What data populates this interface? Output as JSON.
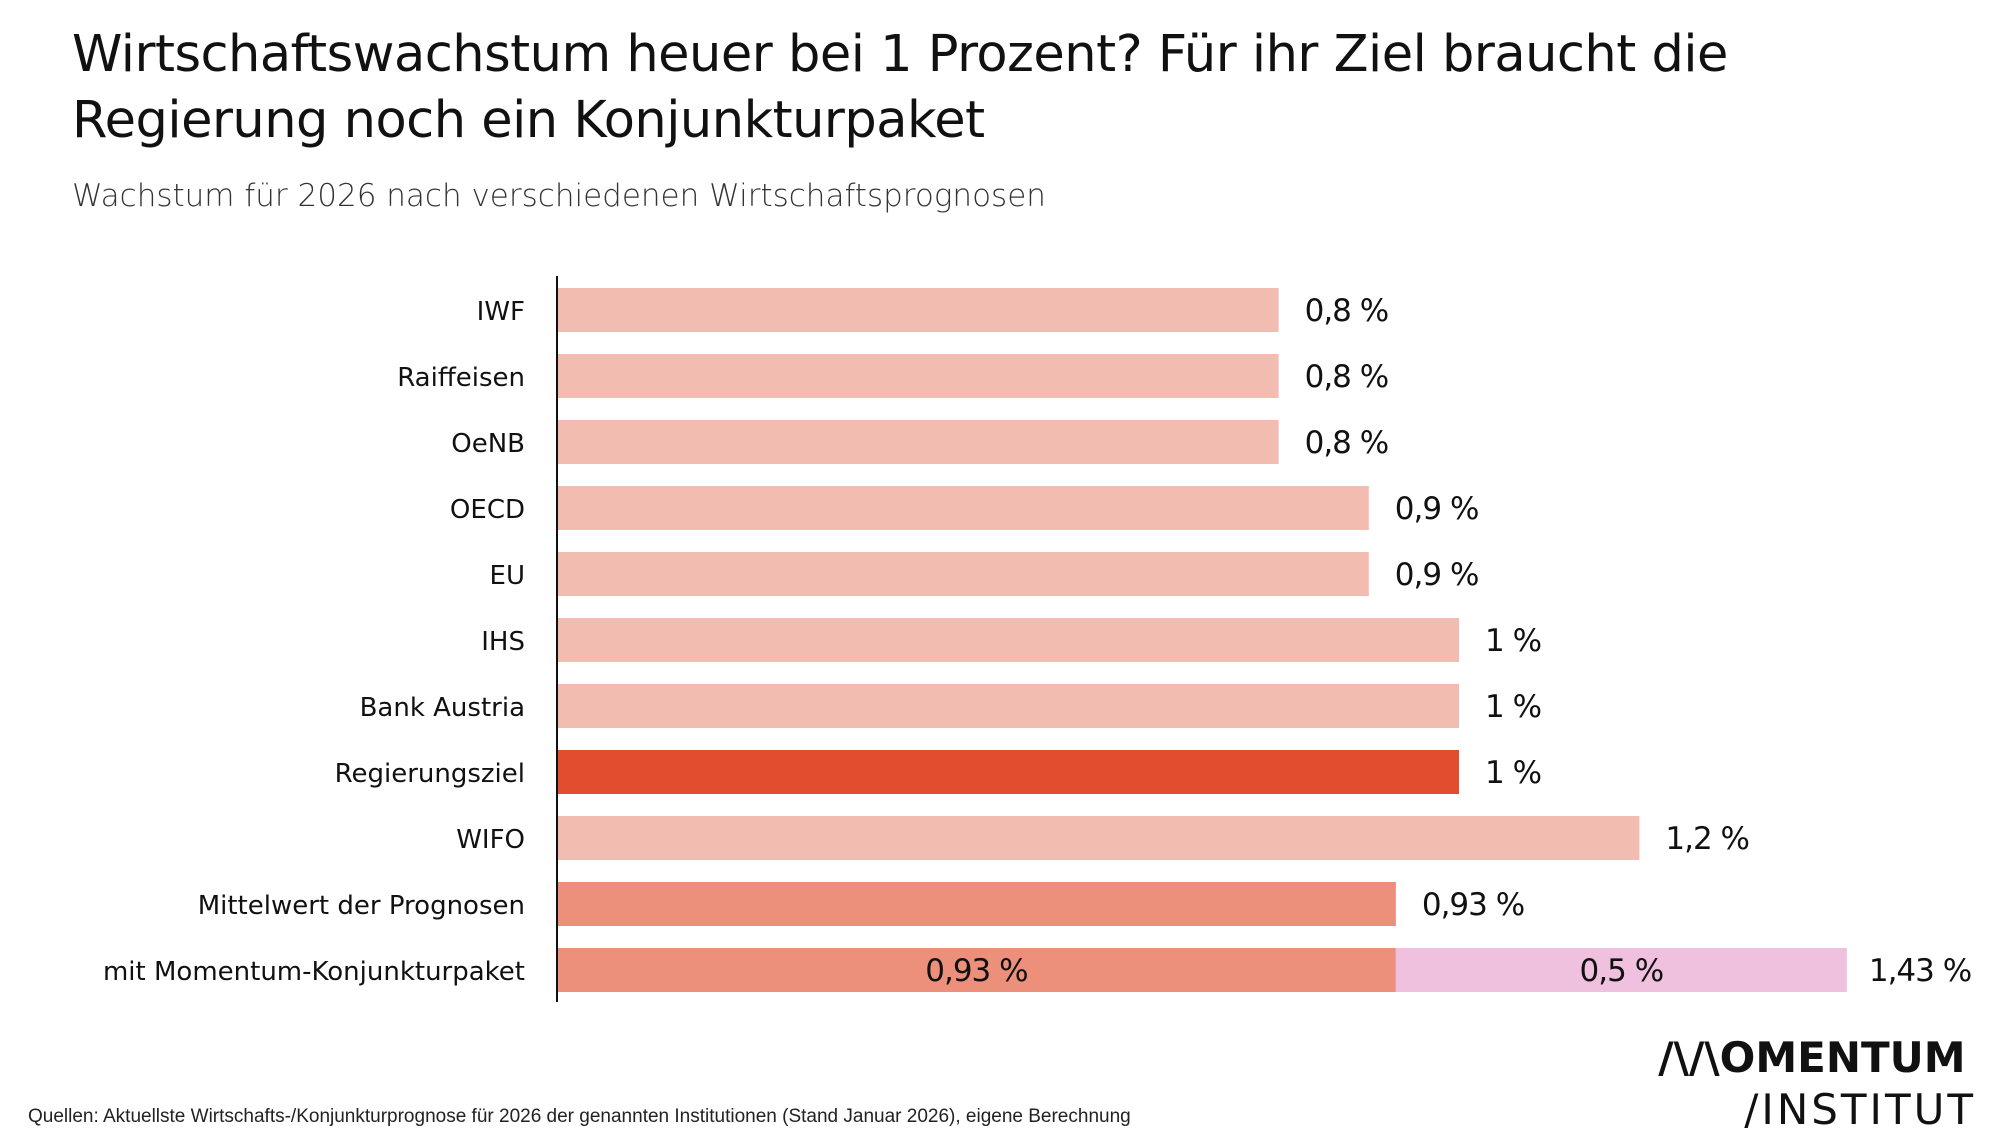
{
  "header": {
    "title": "Wirtschaftswachstum heuer bei 1 Prozent? Für ihr Ziel braucht die Regierung noch ein Konjunkturpaket",
    "subtitle": "Wachstum für 2026 nach verschiedenen Wirtschaftsprognosen"
  },
  "footer": {
    "source": "Quellen: Aktuellste Wirtschafts-/Konjunkturprognose für 2026 der genannten Institutionen (Stand Januar 2026), eigene Berechnung",
    "logo_line1": "/\\/\\OMENTUM",
    "logo_line2": "/INSTITUT"
  },
  "colors": {
    "forecast": "#f3bcb0",
    "target": "#e24d2d",
    "mean": "#ec907b",
    "package": "#f0c1df"
  },
  "chart_data": {
    "type": "bar",
    "orientation": "horizontal",
    "stacked_last_row": true,
    "title": "Wirtschaftswachstum heuer bei 1 Prozent? Für ihr Ziel braucht die Regierung noch ein Konjunkturpaket",
    "subtitle": "Wachstum für 2026 nach verschiedenen Wirtschaftsprognosen",
    "xlim": [
      0,
      1.5
    ],
    "grid": false,
    "rows": [
      {
        "category": "IWF",
        "values": [
          0.8
        ],
        "labels": [
          "0,8 %"
        ],
        "color_keys": [
          "forecast"
        ],
        "total_label": ""
      },
      {
        "category": "Raiffeisen",
        "values": [
          0.8
        ],
        "labels": [
          "0,8 %"
        ],
        "color_keys": [
          "forecast"
        ],
        "total_label": ""
      },
      {
        "category": "OeNB",
        "values": [
          0.8
        ],
        "labels": [
          "0,8 %"
        ],
        "color_keys": [
          "forecast"
        ],
        "total_label": ""
      },
      {
        "category": "OECD",
        "values": [
          0.9
        ],
        "labels": [
          "0,9 %"
        ],
        "color_keys": [
          "forecast"
        ],
        "total_label": ""
      },
      {
        "category": "EU",
        "values": [
          0.9
        ],
        "labels": [
          "0,9 %"
        ],
        "color_keys": [
          "forecast"
        ],
        "total_label": ""
      },
      {
        "category": "IHS",
        "values": [
          1.0
        ],
        "labels": [
          "1 %"
        ],
        "color_keys": [
          "forecast"
        ],
        "total_label": ""
      },
      {
        "category": "Bank Austria",
        "values": [
          1.0
        ],
        "labels": [
          "1 %"
        ],
        "color_keys": [
          "forecast"
        ],
        "total_label": ""
      },
      {
        "category": "Regierungsziel",
        "values": [
          1.0
        ],
        "labels": [
          "1 %"
        ],
        "color_keys": [
          "target"
        ],
        "total_label": ""
      },
      {
        "category": "WIFO",
        "values": [
          1.2
        ],
        "labels": [
          "1,2 %"
        ],
        "color_keys": [
          "forecast"
        ],
        "total_label": ""
      },
      {
        "category": "Mittelwert der Prognosen",
        "values": [
          0.93
        ],
        "labels": [
          "0,93 %"
        ],
        "color_keys": [
          "mean"
        ],
        "total_label": ""
      },
      {
        "category": "mit Momentum-Konjunkturpaket",
        "values": [
          0.93,
          0.5
        ],
        "labels": [
          "0,93 %",
          "0,5 %"
        ],
        "color_keys": [
          "mean",
          "package"
        ],
        "total_label": "1,43 %"
      }
    ]
  }
}
